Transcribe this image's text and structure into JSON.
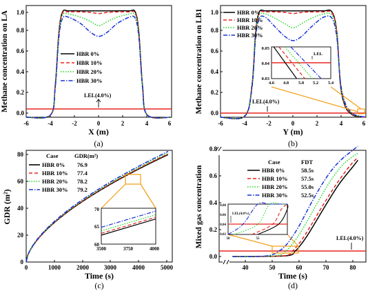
{
  "chart_data": [
    {
      "panel": "(a)",
      "type": "line",
      "xlabel": "X (m)",
      "ylabel": "Methane concentration on LA",
      "xlim": [
        -6,
        6
      ],
      "ylim": [
        0,
        1.05
      ],
      "xticks": [
        "-6",
        "-4",
        "-2",
        "0",
        "2",
        "4",
        "6"
      ],
      "yticks": [
        "0.0",
        "0.2",
        "0.4",
        "0.6",
        "0.8",
        "1.0"
      ],
      "legend_position": "center",
      "series": [
        {
          "name": "HBR 0%",
          "color": "#000000",
          "dash": "solid",
          "x": [
            -6,
            -4,
            -3.6,
            -3.3,
            -3,
            -2.5,
            -1.5,
            -0.7,
            0,
            0.7,
            1.5,
            2.5,
            3,
            3.3,
            3.6,
            4,
            6
          ],
          "y": [
            0,
            0.02,
            0.3,
            0.8,
            0.99,
            1.0,
            1.0,
            1.0,
            1.0,
            1.0,
            1.0,
            1.0,
            0.99,
            0.8,
            0.3,
            0.02,
            0
          ]
        },
        {
          "name": "HBR 10%",
          "color": "#e8231f",
          "dash": "dashed",
          "x": [
            -6,
            -4,
            -3.6,
            -3.3,
            -3,
            -2.5,
            -1.5,
            -0.7,
            0,
            0.7,
            1.5,
            2.5,
            3,
            3.3,
            3.6,
            4,
            6
          ],
          "y": [
            0,
            0.02,
            0.3,
            0.8,
            0.98,
            0.99,
            0.99,
            0.985,
            0.975,
            0.985,
            0.99,
            0.99,
            0.98,
            0.8,
            0.3,
            0.02,
            0
          ]
        },
        {
          "name": "HBR 20%",
          "color": "#1fd81f",
          "dash": "dotted",
          "x": [
            -6,
            -4,
            -3.6,
            -3.3,
            -3,
            -2.5,
            -1.5,
            -0.7,
            0,
            0.7,
            1.5,
            2.5,
            3,
            3.3,
            3.6,
            4,
            6
          ],
          "y": [
            0,
            0.02,
            0.29,
            0.78,
            0.96,
            0.97,
            0.94,
            0.9,
            0.86,
            0.9,
            0.94,
            0.97,
            0.96,
            0.78,
            0.29,
            0.02,
            0
          ]
        },
        {
          "name": "HBR 30%",
          "color": "#1732d6",
          "dash": "dashdot",
          "x": [
            -6,
            -4,
            -3.6,
            -3.3,
            -3,
            -2.5,
            -1.5,
            -0.7,
            0,
            0.7,
            1.5,
            2.5,
            3,
            3.3,
            3.6,
            4,
            6
          ],
          "y": [
            0,
            0.02,
            0.28,
            0.75,
            0.93,
            0.94,
            0.88,
            0.8,
            0.76,
            0.8,
            0.88,
            0.94,
            0.93,
            0.75,
            0.28,
            0.02,
            0
          ]
        }
      ],
      "lel": {
        "value": 0.04,
        "label": "LEL(4.0%)",
        "color": "#e8231f"
      }
    },
    {
      "panel": "(b)",
      "type": "line",
      "xlabel": "Y (m)",
      "ylabel": "Methane concentration on LB1",
      "xlim": [
        -6,
        6
      ],
      "ylim": [
        0,
        1.05
      ],
      "xticks": [
        "-6",
        "-4",
        "-2",
        "0",
        "2",
        "4",
        "6"
      ],
      "yticks": [
        "0.0",
        "0.2",
        "0.4",
        "0.6",
        "0.8",
        "1.0"
      ],
      "legend_position": "top-left",
      "series": [
        {
          "name": "HBR 0%",
          "color": "#000000",
          "dash": "solid",
          "x": [
            -6,
            -4,
            -3.4,
            -3.1,
            -2.8,
            -2.3,
            -1.5,
            -0.7,
            0,
            0.7,
            1.5,
            2.5,
            3.2,
            3.6,
            3.9,
            4.3,
            4.8,
            5.2,
            6
          ],
          "y": [
            0,
            0.01,
            0.3,
            0.8,
            0.99,
            1.0,
            1.0,
            1.0,
            1.0,
            1.0,
            1.0,
            1.0,
            0.99,
            0.8,
            0.3,
            0.1,
            0.03,
            0.01,
            0
          ]
        },
        {
          "name": "HBR 10%",
          "color": "#e8231f",
          "dash": "dashed",
          "x": [
            -6,
            -4,
            -3.4,
            -3.1,
            -2.8,
            -2.3,
            -1.5,
            -0.7,
            0,
            0.7,
            1.5,
            2.5,
            3.2,
            3.6,
            3.9,
            4.3,
            4.8,
            5.2,
            6
          ],
          "y": [
            0,
            0.01,
            0.3,
            0.8,
            0.98,
            0.99,
            0.99,
            0.985,
            0.975,
            0.985,
            0.99,
            0.99,
            0.98,
            0.8,
            0.31,
            0.11,
            0.035,
            0.012,
            0
          ]
        },
        {
          "name": "HBR 20%",
          "color": "#1fd81f",
          "dash": "dotted",
          "x": [
            -6,
            -4,
            -3.4,
            -3.1,
            -2.8,
            -2.3,
            -1.5,
            -0.7,
            0,
            0.7,
            1.5,
            2.5,
            3.2,
            3.6,
            3.9,
            4.3,
            4.8,
            5.2,
            6
          ],
          "y": [
            0,
            0.01,
            0.29,
            0.78,
            0.96,
            0.97,
            0.93,
            0.88,
            0.84,
            0.88,
            0.93,
            0.97,
            0.96,
            0.78,
            0.32,
            0.12,
            0.04,
            0.015,
            0
          ]
        },
        {
          "name": "HBR 30%",
          "color": "#1732d6",
          "dash": "dashdot",
          "x": [
            -6,
            -4,
            -3.4,
            -3.1,
            -2.8,
            -2.3,
            -1.5,
            -0.7,
            0,
            0.7,
            1.5,
            2.5,
            3.2,
            3.6,
            3.9,
            4.3,
            4.8,
            5.2,
            6
          ],
          "y": [
            0,
            0.01,
            0.28,
            0.75,
            0.93,
            0.94,
            0.85,
            0.76,
            0.72,
            0.76,
            0.85,
            0.94,
            0.93,
            0.75,
            0.33,
            0.13,
            0.045,
            0.018,
            0
          ]
        }
      ],
      "lel": {
        "value": 0.04,
        "label": "LEL(4.0%)",
        "color": "#e8231f"
      },
      "inset": {
        "xlim": [
          4.6,
          5.4
        ],
        "ylim": [
          0.03,
          0.05
        ],
        "xticks": [
          "4.6",
          "4.8",
          "5.0",
          "5.2",
          "5.4"
        ],
        "yticks": [
          "0.03",
          "0.04",
          "0.05"
        ],
        "label": "LEL",
        "series_x": [
          [
            4.63,
            4.94
          ],
          [
            4.7,
            5.05
          ],
          [
            4.78,
            5.15
          ],
          [
            4.86,
            5.27
          ]
        ],
        "series_y": [
          [
            0.05,
            0.03
          ],
          [
            0.05,
            0.03
          ],
          [
            0.05,
            0.03
          ],
          [
            0.05,
            0.03
          ]
        ]
      }
    },
    {
      "panel": "(c)",
      "type": "line",
      "xlabel": "Time (s)",
      "ylabel": "GDR (m²)",
      "xlim": [
        0,
        5200
      ],
      "ylim": [
        0,
        80
      ],
      "xticks": [
        "0",
        "1000",
        "2000",
        "3000",
        "4000",
        "5000"
      ],
      "yticks": [
        "0",
        "20",
        "40",
        "60",
        "80"
      ],
      "legend_position": "top-left",
      "legend_header": {
        "case": "Case",
        "value": "GDR(m²)"
      },
      "legend_values": [
        "76.9",
        "77.4",
        "78.2",
        "79.2"
      ],
      "series": [
        {
          "name": "HBR 0%",
          "color": "#000000",
          "dash": "solid",
          "final": 76.9
        },
        {
          "name": "HBR 10%",
          "color": "#e8231f",
          "dash": "dashed",
          "final": 77.4
        },
        {
          "name": "HBR 20%",
          "color": "#1fd81f",
          "dash": "dotted",
          "final": 78.2
        },
        {
          "name": "HBR 30%",
          "color": "#1732d6",
          "dash": "dashdot",
          "final": 79.2
        }
      ],
      "inset": {
        "xlim": [
          3500,
          4000
        ],
        "ylim": [
          60,
          70
        ],
        "xticks": [
          "3500",
          "3750",
          "4000"
        ],
        "yticks": [
          "60",
          "65",
          "70"
        ],
        "series_y": [
          [
            62.5,
            67.0
          ],
          [
            63.0,
            67.5
          ],
          [
            63.7,
            68.2
          ],
          [
            64.7,
            69.2
          ]
        ]
      }
    },
    {
      "panel": "(d)",
      "type": "line",
      "xlabel": "Time (s)",
      "ylabel": "Mixed gas concentration",
      "xlim": [
        30,
        85
      ],
      "ylim": [
        0,
        0.8
      ],
      "xticks": [
        "40",
        "50",
        "60",
        "70",
        "80"
      ],
      "yticks": [
        "0.0",
        "0.2",
        "0.4",
        "0.6",
        "0.8"
      ],
      "axis_break": true,
      "legend_position": "top-center",
      "legend_header": {
        "case": "Case",
        "value": "FDT"
      },
      "legend_values": [
        "58.5s",
        "57.5s",
        "55.0s",
        "52.5s"
      ],
      "series": [
        {
          "name": "HBR 0%",
          "color": "#000000",
          "dash": "solid",
          "x": [
            35,
            55,
            58.5,
            60,
            62,
            65,
            70,
            75,
            80,
            82
          ],
          "y": [
            0.0,
            0.005,
            0.04,
            0.07,
            0.12,
            0.21,
            0.37,
            0.52,
            0.64,
            0.69
          ]
        },
        {
          "name": "HBR 10%",
          "color": "#e8231f",
          "dash": "dashed",
          "x": [
            35,
            54,
            57.5,
            59,
            61,
            64,
            69,
            74,
            79,
            82
          ],
          "y": [
            0.0,
            0.005,
            0.04,
            0.07,
            0.12,
            0.21,
            0.37,
            0.52,
            0.65,
            0.71
          ]
        },
        {
          "name": "HBR 20%",
          "color": "#1fd81f",
          "dash": "dotted",
          "x": [
            35,
            51,
            55,
            57,
            59,
            62,
            67,
            72,
            77,
            82
          ],
          "y": [
            0.0,
            0.005,
            0.04,
            0.08,
            0.13,
            0.22,
            0.39,
            0.55,
            0.67,
            0.74
          ]
        },
        {
          "name": "HBR 30%",
          "color": "#1732d6",
          "dash": "dashdot",
          "x": [
            35,
            48,
            52.5,
            55,
            57,
            60,
            65,
            70,
            75,
            82
          ],
          "y": [
            0.0,
            0.005,
            0.04,
            0.08,
            0.13,
            0.22,
            0.4,
            0.56,
            0.68,
            0.79
          ]
        }
      ],
      "lel": {
        "value": 0.04,
        "label": "LEL(4.0%)",
        "color": "#e8231f"
      },
      "inset": {
        "xlim": [
          50,
          60
        ],
        "ylim": [
          0.02,
          0.08
        ],
        "xticks": [
          "50",
          "55"
        ],
        "yticks": [
          "0.02",
          "0.04",
          "0.06",
          "0.08"
        ],
        "label": "LEL(4.0%)"
      }
    }
  ]
}
